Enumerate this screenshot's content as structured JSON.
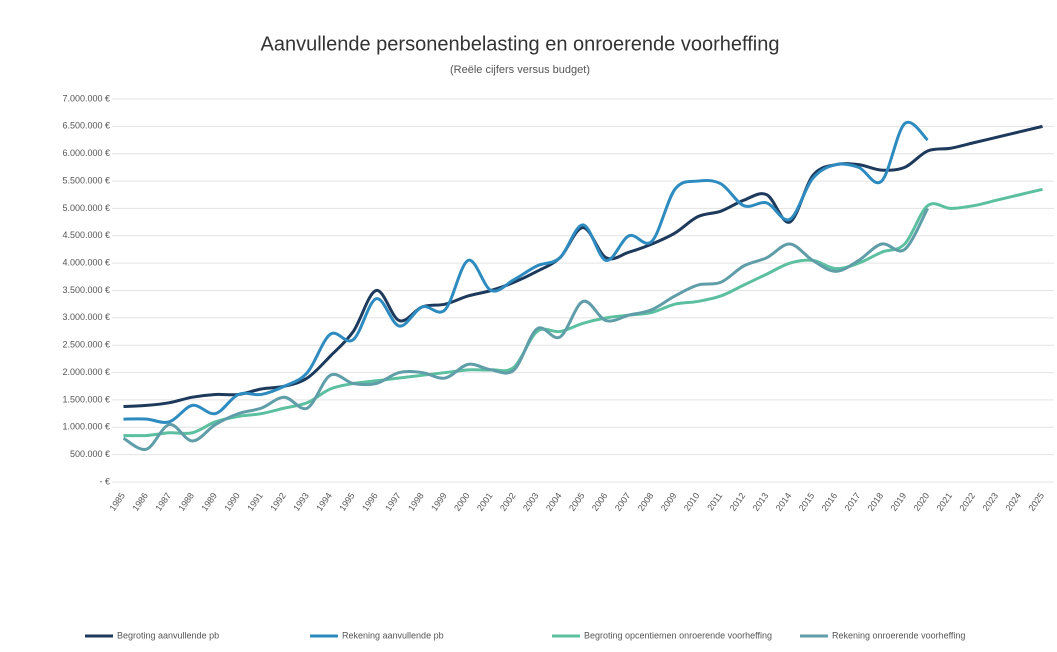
{
  "chart_data": {
    "type": "line",
    "title": "Aanvullende personenbelasting en onroerende voorheffing",
    "subtitle": "(Reële cijfers versus budget)",
    "categories": [
      "1985",
      "1986",
      "1987",
      "1988",
      "1989",
      "1990",
      "1991",
      "1992",
      "1993",
      "1994",
      "1995",
      "1996",
      "1997",
      "1998",
      "1999",
      "2000",
      "2001",
      "2002",
      "2003",
      "2004",
      "2005",
      "2006",
      "2007",
      "2008",
      "2009",
      "2010",
      "2011",
      "2012",
      "2013",
      "2014",
      "2015",
      "2016",
      "2017",
      "2018",
      "2019",
      "2020",
      "2021",
      "2022",
      "2023",
      "2024",
      "2025"
    ],
    "ylim": [
      0,
      7000000
    ],
    "yticks": [
      {
        "value": 0,
        "label": "- €"
      },
      {
        "value": 500000,
        "label": "500.000 €"
      },
      {
        "value": 1000000,
        "label": "1.000.000 €"
      },
      {
        "value": 1500000,
        "label": "1.500.000 €"
      },
      {
        "value": 2000000,
        "label": "2.000.000 €"
      },
      {
        "value": 2500000,
        "label": "2.500.000 €"
      },
      {
        "value": 3000000,
        "label": "3.000.000 €"
      },
      {
        "value": 3500000,
        "label": "3.500.000 €"
      },
      {
        "value": 4000000,
        "label": "4.000.000 €"
      },
      {
        "value": 4500000,
        "label": "4.500.000 €"
      },
      {
        "value": 5000000,
        "label": "5.000.000 €"
      },
      {
        "value": 5500000,
        "label": "5.500.000 €"
      },
      {
        "value": 6000000,
        "label": "6.000.000 €"
      },
      {
        "value": 6500000,
        "label": "6.500.000 €"
      },
      {
        "value": 7000000,
        "label": "7.000.000 €"
      }
    ],
    "grid": true,
    "legend": "bottom",
    "series": [
      {
        "name": "Begroting aanvullende pb",
        "color": "#1d3a5c",
        "values": [
          1380000,
          1400000,
          1450000,
          1550000,
          1600000,
          1600000,
          1700000,
          1750000,
          1900000,
          2300000,
          2750000,
          3500000,
          2950000,
          3200000,
          3250000,
          3400000,
          3500000,
          3650000,
          3850000,
          4100000,
          4650000,
          4100000,
          4200000,
          4350000,
          4550000,
          4850000,
          4950000,
          5150000,
          5250000,
          4750000,
          5600000,
          5800000,
          5800000,
          5700000,
          5750000,
          6050000,
          6100000,
          6200000,
          6300000,
          6400000,
          6500000
        ]
      },
      {
        "name": "Rekening aanvullende pb",
        "color": "#2e8bc0",
        "values": [
          1150000,
          1150000,
          1100000,
          1400000,
          1250000,
          1600000,
          1600000,
          1750000,
          2000000,
          2700000,
          2600000,
          3350000,
          2850000,
          3200000,
          3150000,
          4050000,
          3500000,
          3700000,
          3950000,
          4100000,
          4700000,
          4050000,
          4500000,
          4400000,
          5350000,
          5500000,
          5450000,
          5050000,
          5100000,
          4800000,
          5550000,
          5800000,
          5750000,
          5500000,
          6550000,
          6250000,
          null,
          null,
          null,
          null,
          null
        ]
      },
      {
        "name": "Begroting opcentiemen onroerende voorheffing",
        "color": "#5cc0a0",
        "values": [
          850000,
          850000,
          900000,
          900000,
          1100000,
          1200000,
          1250000,
          1350000,
          1450000,
          1700000,
          1800000,
          1850000,
          1900000,
          1950000,
          2000000,
          2050000,
          2050000,
          2100000,
          2750000,
          2750000,
          2900000,
          3000000,
          3050000,
          3100000,
          3250000,
          3300000,
          3400000,
          3600000,
          3800000,
          4000000,
          4050000,
          3900000,
          4000000,
          4200000,
          4350000,
          5050000,
          5000000,
          5050000,
          5150000,
          5250000,
          5350000
        ]
      },
      {
        "name": "Rekening onroerende voorheffing",
        "color": "#5f9ea8",
        "values": [
          800000,
          600000,
          1050000,
          750000,
          1050000,
          1250000,
          1350000,
          1550000,
          1350000,
          1950000,
          1800000,
          1800000,
          2000000,
          2000000,
          1900000,
          2150000,
          2050000,
          2050000,
          2800000,
          2650000,
          3300000,
          2950000,
          3050000,
          3150000,
          3400000,
          3600000,
          3650000,
          3950000,
          4100000,
          4350000,
          4050000,
          3850000,
          4050000,
          4350000,
          4250000,
          5000000,
          null,
          null,
          null,
          null,
          null
        ]
      }
    ]
  }
}
